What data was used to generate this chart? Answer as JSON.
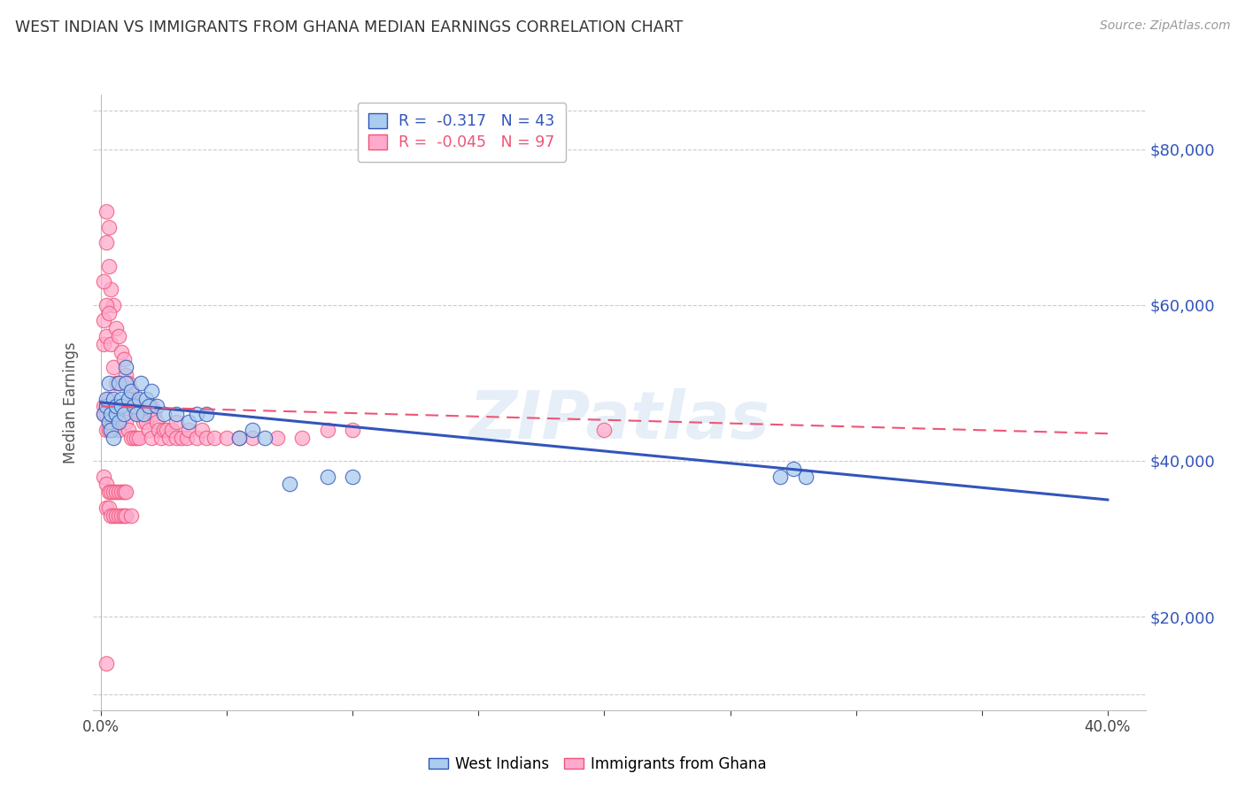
{
  "title": "WEST INDIAN VS IMMIGRANTS FROM GHANA MEDIAN EARNINGS CORRELATION CHART",
  "source": "Source: ZipAtlas.com",
  "ylabel": "Median Earnings",
  "yticks": [
    20000,
    40000,
    60000,
    80000
  ],
  "ytick_labels": [
    "$20,000",
    "$40,000",
    "$60,000",
    "$80,000"
  ],
  "xlim": [
    -0.003,
    0.415
  ],
  "ylim": [
    8000,
    87000
  ],
  "watermark": "ZIPatlas",
  "blue_color": "#AACCEE",
  "pink_color": "#FFAACC",
  "trend_blue": "#3355BB",
  "trend_pink": "#EE5577",
  "R_blue": -0.317,
  "N_blue": 43,
  "R_pink": -0.045,
  "N_pink": 97,
  "blue_trend_x0": 0.0,
  "blue_trend_y0": 47500,
  "blue_trend_x1": 0.4,
  "blue_trend_y1": 35000,
  "pink_trend_x0": 0.0,
  "pink_trend_y0": 47000,
  "pink_trend_x1": 0.4,
  "pink_trend_y1": 43500,
  "west_indians_x": [
    0.001,
    0.002,
    0.002,
    0.003,
    0.003,
    0.004,
    0.004,
    0.005,
    0.005,
    0.006,
    0.006,
    0.007,
    0.007,
    0.008,
    0.008,
    0.009,
    0.01,
    0.01,
    0.011,
    0.012,
    0.013,
    0.014,
    0.015,
    0.016,
    0.017,
    0.018,
    0.019,
    0.02,
    0.022,
    0.025,
    0.03,
    0.035,
    0.038,
    0.042,
    0.055,
    0.06,
    0.065,
    0.075,
    0.09,
    0.1,
    0.27,
    0.275,
    0.28
  ],
  "west_indians_y": [
    46000,
    47000,
    48000,
    45000,
    50000,
    46000,
    44000,
    48000,
    43000,
    46000,
    47000,
    45000,
    50000,
    48000,
    47000,
    46000,
    50000,
    52000,
    48000,
    49000,
    47000,
    46000,
    48000,
    50000,
    46000,
    48000,
    47000,
    49000,
    47000,
    46000,
    46000,
    45000,
    46000,
    46000,
    43000,
    44000,
    43000,
    37000,
    38000,
    38000,
    38000,
    39000,
    38000
  ],
  "ghana_x": [
    0.001,
    0.001,
    0.001,
    0.002,
    0.002,
    0.002,
    0.002,
    0.002,
    0.003,
    0.003,
    0.003,
    0.003,
    0.004,
    0.004,
    0.004,
    0.005,
    0.005,
    0.005,
    0.006,
    0.006,
    0.006,
    0.007,
    0.007,
    0.007,
    0.008,
    0.008,
    0.009,
    0.009,
    0.01,
    0.01,
    0.011,
    0.011,
    0.012,
    0.012,
    0.013,
    0.013,
    0.014,
    0.014,
    0.015,
    0.015,
    0.016,
    0.017,
    0.018,
    0.019,
    0.02,
    0.02,
    0.021,
    0.022,
    0.023,
    0.024,
    0.025,
    0.026,
    0.027,
    0.028,
    0.03,
    0.03,
    0.032,
    0.034,
    0.035,
    0.038,
    0.04,
    0.042,
    0.045,
    0.05,
    0.055,
    0.06,
    0.07,
    0.08,
    0.09,
    0.1,
    0.001,
    0.002,
    0.003,
    0.004,
    0.005,
    0.006,
    0.007,
    0.008,
    0.009,
    0.01,
    0.002,
    0.003,
    0.004,
    0.005,
    0.006,
    0.007,
    0.008,
    0.009,
    0.01,
    0.012,
    0.001,
    0.002,
    0.003,
    0.001,
    0.002,
    0.2,
    0.002
  ],
  "ghana_y": [
    55000,
    58000,
    47000,
    72000,
    68000,
    56000,
    47000,
    44000,
    70000,
    65000,
    48000,
    44000,
    62000,
    55000,
    46000,
    60000,
    52000,
    44000,
    57000,
    50000,
    46000,
    56000,
    50000,
    44000,
    54000,
    47000,
    53000,
    46000,
    51000,
    45000,
    50000,
    44000,
    49000,
    43000,
    48000,
    43000,
    47000,
    43000,
    46000,
    43000,
    46000,
    45000,
    45000,
    44000,
    47000,
    43000,
    46000,
    45000,
    44000,
    43000,
    44000,
    44000,
    43000,
    44000,
    45000,
    43000,
    43000,
    43000,
    44000,
    43000,
    44000,
    43000,
    43000,
    43000,
    43000,
    43000,
    43000,
    43000,
    44000,
    44000,
    38000,
    37000,
    36000,
    36000,
    36000,
    36000,
    36000,
    36000,
    36000,
    36000,
    34000,
    34000,
    33000,
    33000,
    33000,
    33000,
    33000,
    33000,
    33000,
    33000,
    63000,
    60000,
    59000,
    46000,
    46000,
    44000,
    14000
  ]
}
